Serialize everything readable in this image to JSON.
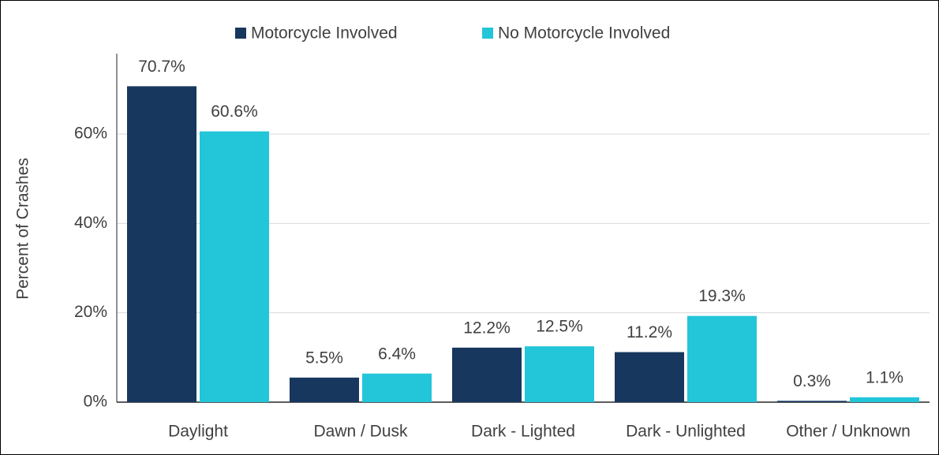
{
  "chart_data": {
    "type": "bar",
    "y_label": "Percent of Crashes",
    "categories": [
      "Daylight",
      "Dawn / Dusk",
      "Dark - Lighted",
      "Dark - Unlighted",
      "Other / Unknown"
    ],
    "series": [
      {
        "name": "Motorcycle Involved",
        "color": "#17375e",
        "values": [
          70.7,
          5.5,
          12.2,
          11.2,
          0.3
        ],
        "value_labels": [
          "70.7%",
          "5.5%",
          "12.2%",
          "11.2%",
          "0.3%"
        ]
      },
      {
        "name": "No Motorcycle Involved",
        "color": "#23c5d9",
        "values": [
          60.6,
          6.4,
          12.5,
          19.3,
          1.1
        ],
        "value_labels": [
          "60.6%",
          "6.4%",
          "12.5%",
          "19.3%",
          "1.1%"
        ]
      }
    ],
    "ylim": [
      0,
      78
    ],
    "yticks": [
      {
        "value": 0,
        "label": "0%"
      },
      {
        "value": 20,
        "label": "20%"
      },
      {
        "value": 40,
        "label": "40%"
      },
      {
        "value": 60,
        "label": "60%"
      }
    ],
    "grid": true,
    "legend": "top"
  }
}
